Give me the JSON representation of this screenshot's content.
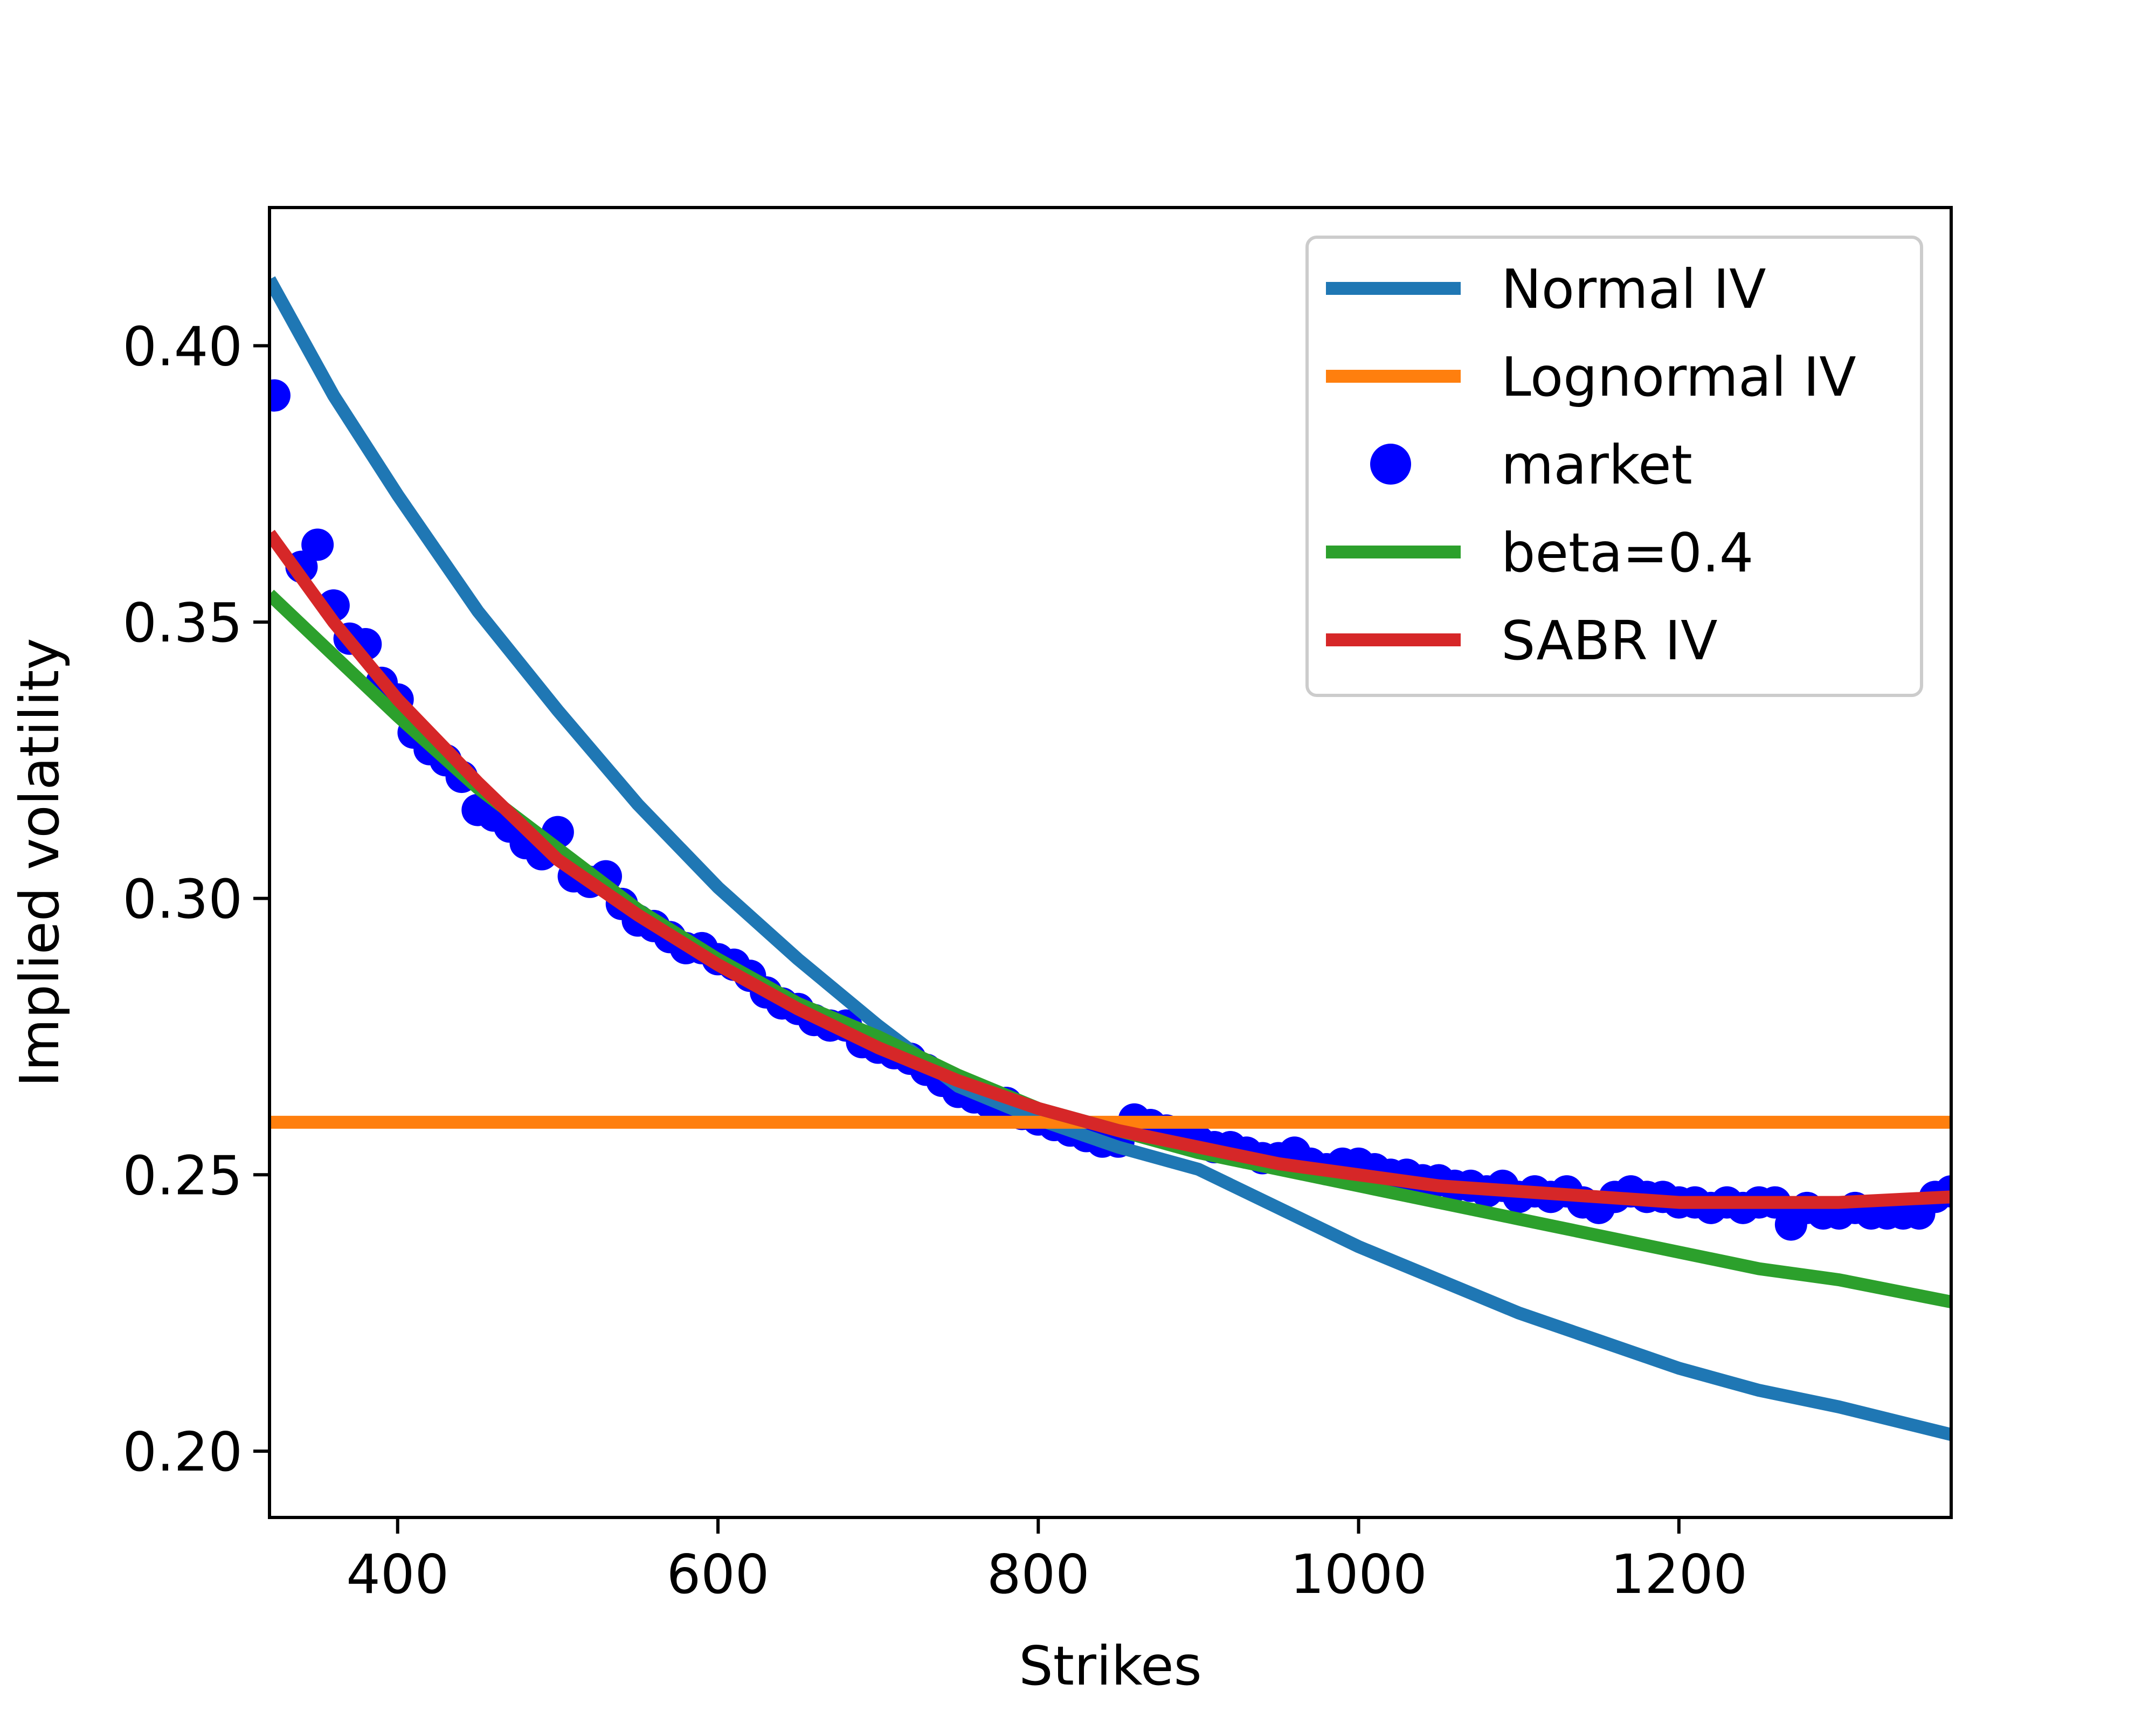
{
  "chart_data": {
    "type": "line",
    "xlabel": "Strikes",
    "ylabel": "Implied volatility",
    "xlim": [
      320,
      1370
    ],
    "ylim": [
      0.188,
      0.425
    ],
    "xticks": [
      {
        "value": 400,
        "label": "400"
      },
      {
        "value": 600,
        "label": "600"
      },
      {
        "value": 800,
        "label": "800"
      },
      {
        "value": 1000,
        "label": "1000"
      },
      {
        "value": 1200,
        "label": "1200"
      }
    ],
    "yticks": [
      {
        "value": 0.2,
        "label": "0.20"
      },
      {
        "value": 0.25,
        "label": "0.25"
      },
      {
        "value": 0.3,
        "label": "0.30"
      },
      {
        "value": 0.35,
        "label": "0.35"
      },
      {
        "value": 0.4,
        "label": "0.40"
      }
    ],
    "grid": false,
    "legend_position": "top-right",
    "series": [
      {
        "name": "Normal IV",
        "style": "line",
        "color": "#1f77b4",
        "x": [
          320,
          360,
          400,
          450,
          500,
          550,
          600,
          650,
          700,
          750,
          800,
          850,
          900,
          950,
          1000,
          1050,
          1100,
          1150,
          1200,
          1250,
          1300,
          1370
        ],
        "y": [
          0.412,
          0.391,
          0.373,
          0.352,
          0.334,
          0.317,
          0.302,
          0.289,
          0.277,
          0.266,
          0.26,
          0.255,
          0.251,
          0.244,
          0.237,
          0.231,
          0.225,
          0.22,
          0.215,
          0.211,
          0.208,
          0.203
        ]
      },
      {
        "name": "Lognormal IV",
        "style": "line",
        "color": "#ff7f0e",
        "x": [
          320,
          1370
        ],
        "y": [
          0.2595,
          0.2595
        ]
      },
      {
        "name": "market",
        "style": "scatter",
        "color": "#0000ff",
        "x": [
          323,
          340,
          350,
          360,
          370,
          380,
          390,
          400,
          410,
          420,
          430,
          440,
          450,
          460,
          470,
          480,
          490,
          500,
          510,
          520,
          530,
          540,
          550,
          560,
          570,
          580,
          590,
          600,
          610,
          620,
          630,
          640,
          650,
          660,
          670,
          680,
          690,
          700,
          710,
          720,
          730,
          740,
          750,
          760,
          770,
          780,
          790,
          800,
          810,
          820,
          830,
          840,
          850,
          860,
          870,
          880,
          890,
          900,
          910,
          920,
          930,
          940,
          950,
          960,
          970,
          980,
          990,
          1000,
          1010,
          1020,
          1030,
          1040,
          1050,
          1060,
          1070,
          1080,
          1090,
          1100,
          1110,
          1120,
          1130,
          1140,
          1150,
          1160,
          1170,
          1180,
          1190,
          1200,
          1210,
          1220,
          1230,
          1240,
          1250,
          1260,
          1270,
          1280,
          1290,
          1300,
          1310,
          1320,
          1330,
          1340,
          1350,
          1360,
          1370
        ],
        "y": [
          0.391,
          0.36,
          0.364,
          0.353,
          0.347,
          0.346,
          0.339,
          0.336,
          0.33,
          0.327,
          0.325,
          0.322,
          0.316,
          0.315,
          0.313,
          0.31,
          0.308,
          0.312,
          0.304,
          0.303,
          0.304,
          0.299,
          0.296,
          0.295,
          0.293,
          0.291,
          0.291,
          0.289,
          0.288,
          0.286,
          0.283,
          0.281,
          0.28,
          0.278,
          0.277,
          0.277,
          0.274,
          0.273,
          0.272,
          0.271,
          0.269,
          0.267,
          0.265,
          0.264,
          0.263,
          0.263,
          0.261,
          0.26,
          0.259,
          0.258,
          0.257,
          0.256,
          0.256,
          0.26,
          0.259,
          0.258,
          0.257,
          0.256,
          0.255,
          0.255,
          0.254,
          0.253,
          0.253,
          0.254,
          0.252,
          0.251,
          0.252,
          0.252,
          0.251,
          0.25,
          0.25,
          0.249,
          0.249,
          0.248,
          0.248,
          0.247,
          0.248,
          0.246,
          0.247,
          0.246,
          0.247,
          0.245,
          0.244,
          0.246,
          0.247,
          0.246,
          0.246,
          0.245,
          0.245,
          0.244,
          0.245,
          0.244,
          0.245,
          0.245,
          0.241,
          0.244,
          0.243,
          0.243,
          0.244,
          0.243,
          0.243,
          0.243,
          0.243,
          0.246,
          0.247
        ]
      },
      {
        "name": "beta=0.4",
        "style": "line",
        "color": "#2ca02c",
        "x": [
          320,
          360,
          400,
          450,
          500,
          550,
          600,
          650,
          700,
          750,
          800,
          850,
          900,
          950,
          1000,
          1050,
          1100,
          1150,
          1200,
          1250,
          1300,
          1370
        ],
        "y": [
          0.355,
          0.344,
          0.333,
          0.32,
          0.309,
          0.298,
          0.289,
          0.281,
          0.275,
          0.268,
          0.262,
          0.258,
          0.254,
          0.251,
          0.248,
          0.245,
          0.242,
          0.239,
          0.236,
          0.233,
          0.231,
          0.227
        ]
      },
      {
        "name": "SABR IV",
        "style": "line",
        "color": "#d62728",
        "x": [
          320,
          360,
          400,
          450,
          500,
          550,
          600,
          650,
          700,
          750,
          800,
          850,
          900,
          950,
          1000,
          1050,
          1100,
          1150,
          1200,
          1250,
          1300,
          1370
        ],
        "y": [
          0.366,
          0.35,
          0.336,
          0.321,
          0.307,
          0.297,
          0.288,
          0.28,
          0.273,
          0.267,
          0.262,
          0.258,
          0.255,
          0.252,
          0.25,
          0.248,
          0.247,
          0.246,
          0.245,
          0.245,
          0.245,
          0.246
        ]
      }
    ]
  }
}
